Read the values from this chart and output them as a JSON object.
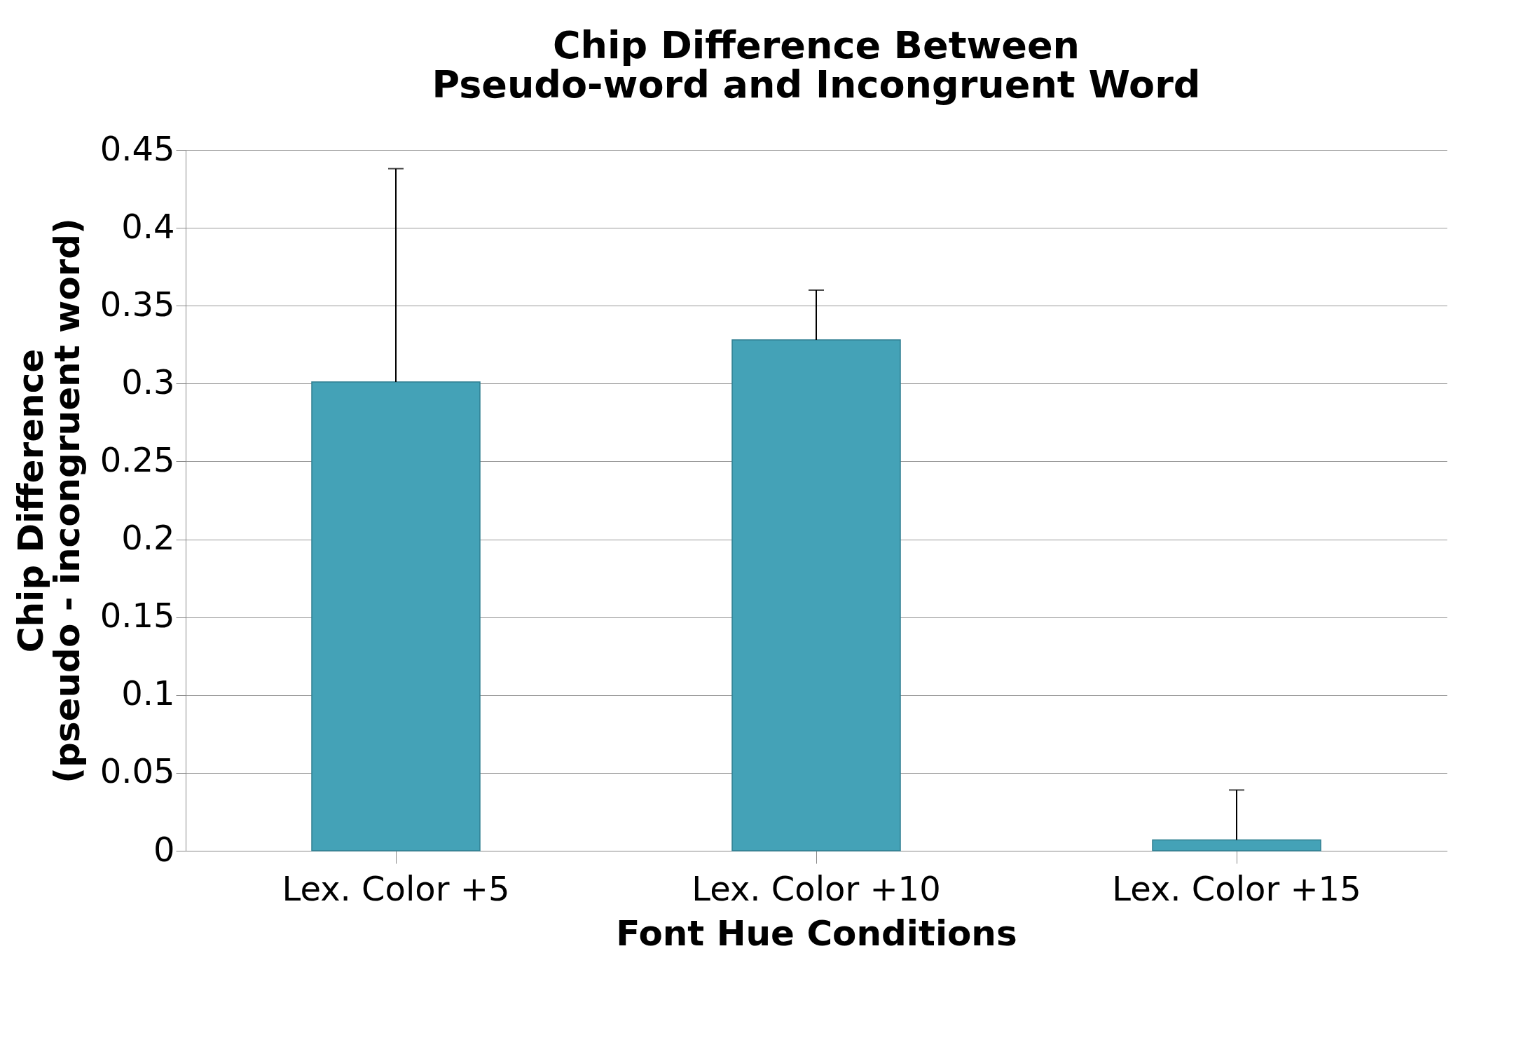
{
  "chart_data": {
    "type": "bar",
    "title": "Chip Difference Between\nPseudo-word and Incongruent Word",
    "xlabel": "Font Hue Conditions",
    "ylabel": "Chip Difference\n(pseudo - incongruent word)",
    "categories": [
      "Lex. Color +5",
      "Lex. Color +10",
      "Lex. Color +15"
    ],
    "values": [
      0.301,
      0.328,
      0.007
    ],
    "color": "#44a2b7",
    "errors": [
      [
        0.301,
        0.438
      ],
      [
        0.328,
        0.36
      ],
      [
        0.007,
        0.039
      ]
    ],
    "ylim": [
      0,
      0.45
    ],
    "yticks": [
      0,
      0.05,
      0.1,
      0.15,
      0.2,
      0.25,
      0.3,
      0.35,
      0.4,
      0.45
    ],
    "grid": "y"
  }
}
